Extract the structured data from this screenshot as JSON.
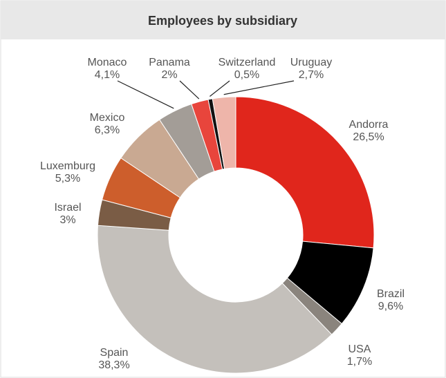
{
  "chart_data": {
    "type": "donut",
    "title": "Employees by subsidiary",
    "categories": [
      "Andorra",
      "Brazil",
      "USA",
      "Spain",
      "Israel",
      "Luxemburg",
      "Mexico",
      "Monaco",
      "Panama",
      "Switzerland",
      "Uruguay"
    ],
    "values": [
      26.5,
      9.6,
      1.7,
      38.3,
      3,
      5.3,
      6.3,
      4.1,
      2,
      0.5,
      2.7
    ],
    "value_labels": [
      "26,5%",
      "9,6%",
      "1,7%",
      "38,3%",
      "3%",
      "5,3%",
      "6,3%",
      "4,1%",
      "2%",
      "0,5%",
      "2,7%"
    ],
    "colors": [
      "#e0261c",
      "#000000",
      "#8a847d",
      "#c4c0bb",
      "#7a5c45",
      "#cd5e2c",
      "#c9a992",
      "#a39d97",
      "#e8453c",
      "#111111",
      "#eeb5aa"
    ]
  }
}
